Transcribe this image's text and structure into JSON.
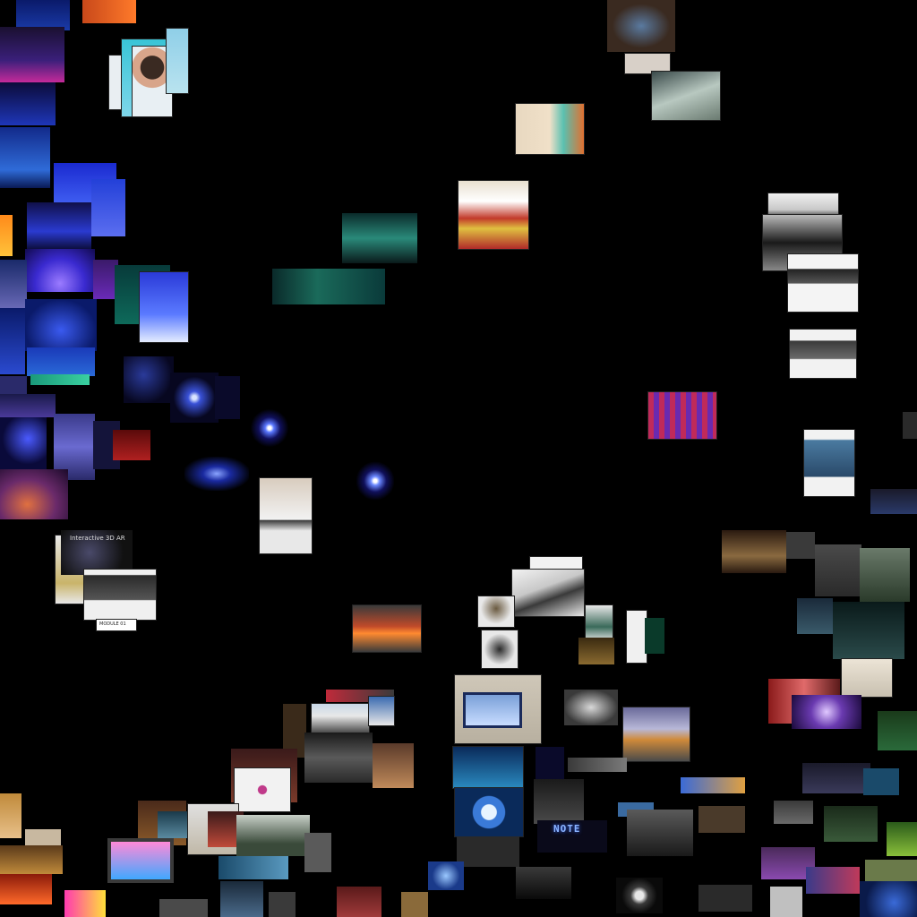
{
  "visible_text": {
    "neon_sign": "NOTE",
    "poster_caption": "Interactive 3D AR",
    "small_caption": "MODULE 01"
  },
  "palette": {
    "background": "#000000"
  }
}
